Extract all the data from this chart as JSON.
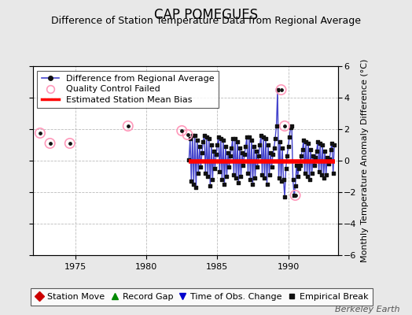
{
  "title": "CAP POMEGUES",
  "subtitle": "Difference of Station Temperature Data from Regional Average",
  "ylabel": "Monthly Temperature Anomaly Difference (°C)",
  "xlim": [
    1972.0,
    1993.5
  ],
  "ylim": [
    -6,
    6
  ],
  "yticks": [
    -6,
    -4,
    -2,
    0,
    2,
    4,
    6
  ],
  "xticks": [
    1975,
    1980,
    1985,
    1990
  ],
  "background_color": "#e8e8e8",
  "plot_bg_color": "#ffffff",
  "grid_color": "#bbbbbb",
  "bias_value": -0.05,
  "bias_start": 1983.0,
  "bias_end": 1993.3,
  "qc_failed_points": [
    [
      1972.5,
      1.75
    ],
    [
      1973.2,
      1.1
    ],
    [
      1974.6,
      1.1
    ],
    [
      1978.7,
      2.2
    ],
    [
      1982.5,
      1.9
    ],
    [
      1982.9,
      1.65
    ],
    [
      1989.5,
      4.5
    ],
    [
      1989.75,
      2.2
    ],
    [
      1990.5,
      -2.2
    ]
  ],
  "main_data_x": [
    1983.0,
    1983.083,
    1983.167,
    1983.25,
    1983.333,
    1983.417,
    1983.5,
    1983.583,
    1983.667,
    1983.75,
    1983.833,
    1983.917,
    1984.0,
    1984.083,
    1984.167,
    1984.25,
    1984.333,
    1984.417,
    1984.5,
    1984.583,
    1984.667,
    1984.75,
    1984.833,
    1984.917,
    1985.0,
    1985.083,
    1985.167,
    1985.25,
    1985.333,
    1985.417,
    1985.5,
    1985.583,
    1985.667,
    1985.75,
    1985.833,
    1985.917,
    1986.0,
    1986.083,
    1986.167,
    1986.25,
    1986.333,
    1986.417,
    1986.5,
    1986.583,
    1986.667,
    1986.75,
    1986.833,
    1986.917,
    1987.0,
    1987.083,
    1987.167,
    1987.25,
    1987.333,
    1987.417,
    1987.5,
    1987.583,
    1987.667,
    1987.75,
    1987.833,
    1987.917,
    1988.0,
    1988.083,
    1988.167,
    1988.25,
    1988.333,
    1988.417,
    1988.5,
    1988.583,
    1988.667,
    1988.75,
    1988.833,
    1988.917,
    1989.0,
    1989.083,
    1989.167,
    1989.25,
    1989.333,
    1989.417,
    1989.5,
    1989.583,
    1989.667,
    1989.75,
    1989.833,
    1989.917,
    1990.0,
    1990.083,
    1990.167,
    1990.25,
    1990.333,
    1990.417,
    1990.5,
    1990.583,
    1990.667,
    1990.75,
    1990.833,
    1990.917,
    1991.0,
    1991.083,
    1991.167,
    1991.25,
    1991.333,
    1991.417,
    1991.5,
    1991.583,
    1991.667,
    1991.75,
    1991.833,
    1991.917,
    1992.0,
    1992.083,
    1992.167,
    1992.25,
    1992.333,
    1992.417,
    1992.5,
    1992.583,
    1992.667,
    1992.75,
    1992.833,
    1992.917,
    1993.0,
    1993.083,
    1993.167,
    1993.25
  ],
  "main_data_y": [
    0.05,
    1.4,
    -1.3,
    1.6,
    -1.5,
    1.6,
    -1.7,
    1.3,
    -0.8,
    0.9,
    -0.4,
    0.5,
    1.2,
    1.6,
    -0.8,
    1.5,
    -1.0,
    1.4,
    -1.6,
    1.0,
    -1.2,
    0.6,
    -0.5,
    0.4,
    1.0,
    1.5,
    -0.7,
    1.4,
    -1.2,
    1.3,
    -1.5,
    0.9,
    -1.0,
    0.5,
    -0.4,
    0.3,
    0.8,
    1.4,
    -0.9,
    1.4,
    -1.1,
    1.2,
    -1.4,
    0.8,
    -1.0,
    0.5,
    -0.3,
    0.4,
    0.9,
    1.5,
    -0.8,
    1.5,
    -1.2,
    1.3,
    -1.5,
    0.9,
    -1.1,
    0.6,
    -0.4,
    0.3,
    1.0,
    1.6,
    -0.9,
    1.5,
    -1.1,
    1.4,
    -1.5,
    1.0,
    -0.9,
    0.5,
    -0.4,
    0.4,
    0.8,
    1.4,
    2.2,
    4.5,
    -1.1,
    1.2,
    -1.3,
    0.8,
    -1.2,
    -2.3,
    -0.5,
    0.3,
    0.9,
    1.5,
    2.1,
    2.2,
    -1.2,
    -2.2,
    -1.6,
    -0.3,
    -1.0,
    -0.5,
    -0.3,
    0.3,
    0.7,
    1.3,
    -0.8,
    1.2,
    -1.0,
    1.1,
    -1.2,
    0.7,
    -0.8,
    0.3,
    -0.3,
    0.2,
    0.6,
    1.2,
    -0.7,
    1.1,
    -0.9,
    1.0,
    -1.1,
    0.6,
    -0.9,
    0.2,
    -0.2,
    0.1,
    0.7,
    1.1,
    -0.8,
    1.0
  ],
  "line_color": "#4444cc",
  "dot_color": "#111111",
  "qc_edge_color": "#ff99bb",
  "bias_color": "#ff0000",
  "title_fontsize": 12,
  "subtitle_fontsize": 9,
  "tick_fontsize": 8,
  "legend_fontsize": 8,
  "watermark": "Berkeley Earth",
  "watermark_fontsize": 8
}
